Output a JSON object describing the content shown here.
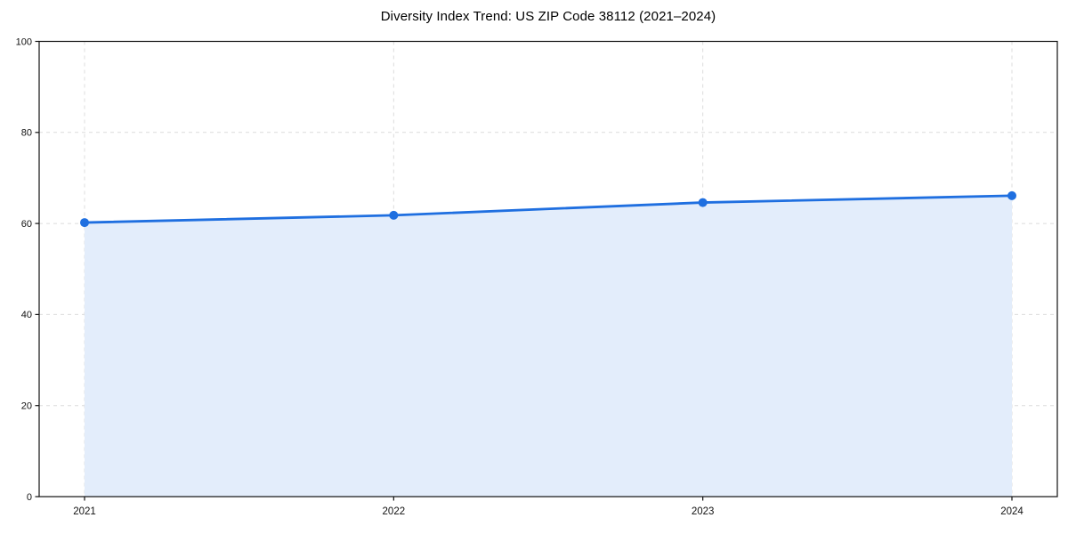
{
  "figure": {
    "background": "#ffffff"
  },
  "chart_data": {
    "type": "area",
    "title": "Diversity Index Trend: US ZIP Code 38112 (2021–2024)",
    "x": [
      "2021",
      "2022",
      "2023",
      "2024"
    ],
    "series": [
      {
        "name": "Diversity Index",
        "values": [
          60.2,
          61.8,
          64.6,
          66.1
        ]
      }
    ],
    "xlabel": "",
    "ylabel": "",
    "ylim": [
      0,
      100
    ],
    "yticks": [
      0,
      20,
      40,
      60,
      80,
      100
    ],
    "grid": true,
    "grid_style": "dashed",
    "legend": "none",
    "marker": "circle",
    "colors": {
      "line": "#1f6fe0",
      "marker": "#1f6fe0",
      "fill": "#e3edfb",
      "grid": "#dcdcdc",
      "spine": "#111111",
      "tick": "#111111",
      "text": "#111111",
      "title": "#000000",
      "background": "#ffffff"
    }
  }
}
